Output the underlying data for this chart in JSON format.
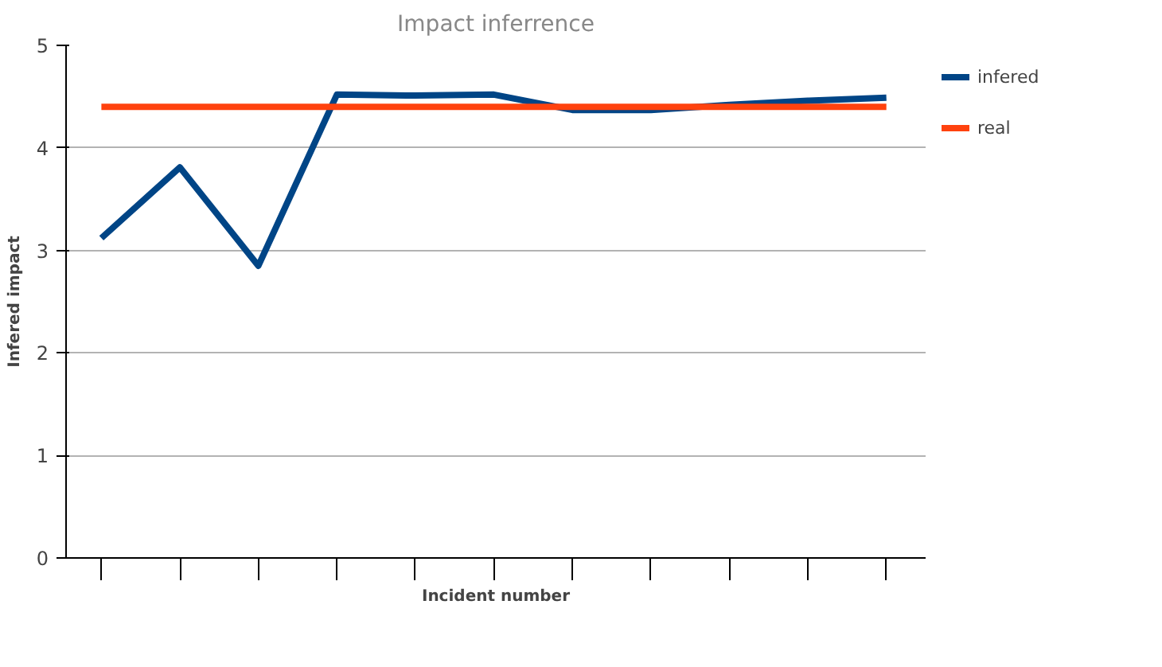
{
  "chart_data": {
    "type": "line",
    "title": "Impact inferrence",
    "xlabel": "Incident number",
    "ylabel": "Infered impact",
    "categories": [
      null,
      null,
      null,
      null,
      null,
      null,
      null,
      null,
      null,
      null,
      null
    ],
    "series": [
      {
        "name": "infered",
        "color": "#004586",
        "values": [
          3.12,
          3.81,
          2.85,
          4.52,
          4.51,
          4.52,
          4.37,
          4.37,
          4.42,
          4.46,
          4.49
        ]
      },
      {
        "name": "real",
        "color": "#ff420e",
        "values": [
          4.4,
          4.4,
          4.4,
          4.4,
          4.4,
          4.4,
          4.4,
          4.4,
          4.4,
          4.4,
          4.4
        ]
      }
    ],
    "ylim": [
      0,
      5
    ],
    "yticks": [
      0,
      1,
      2,
      3,
      4,
      5
    ],
    "grid": "y",
    "legend": "top right",
    "marker": "none",
    "line_style": "solid"
  }
}
